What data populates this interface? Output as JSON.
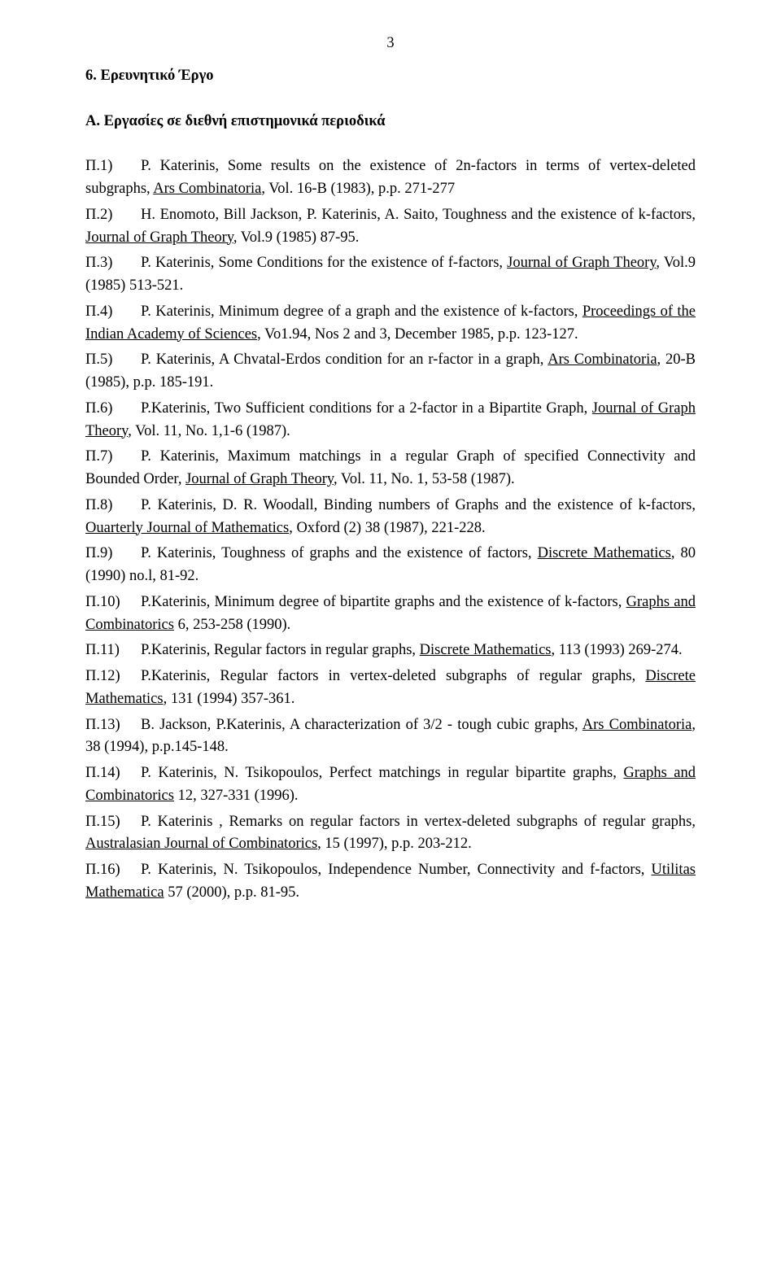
{
  "pageNumber": "3",
  "sectionTitle": "6. Ερευνητικό Έργο",
  "subsectionTitle": "Α. Εργασίες σε διεθνή επιστημονικά  περιοδικά",
  "entries": [
    {
      "label": "Π.1)",
      "pre": "P. Katerinis, Some results on the existence of 2n-factors in terms of vertex-deleted subgraphs, ",
      "u": "Ars Combinatoria",
      "post": ", Vol. 16-B (1983), p.p. 271-277"
    },
    {
      "label": "Π.2)",
      "pre": "H. Enomoto, Bill Jackson, P. Katerinis, A. Saito, Toughness and the existence of k-factors, ",
      "u": "Journal of Graph Theory",
      "post": ", Vol.9 (1985) 87-95."
    },
    {
      "label": "Π.3)",
      "pre": "P. Katerinis, Some Conditions for the existence of f-factors, ",
      "u": "Journal of Graph Theory",
      "post": ", Vol.9 (1985) 513-521."
    },
    {
      "label": "Π.4)",
      "pre": "P. Katerinis, Minimum degree of a graph and the existence of k-factors, ",
      "u": "Proceedings of the Indian Academy of Sciences",
      "post": ", Vo1.94, Nos 2 and 3, December 1985, p.p. 123-127."
    },
    {
      "label": "Π.5)",
      "pre": "P. Katerinis, A Chvatal-Erdos condition for an r-factor in a graph, ",
      "u": "Ars Combinatoria",
      "post": ", 20-B (1985), p.p. 185-191."
    },
    {
      "label": "Π.6)",
      "pre": "P.Katerinis, Two Sufficient conditions for a 2-factor in a Bipartite Graph, ",
      "u": "Journal of Graph Theory",
      "post": ", Vol. 11, No. 1,1-6 (1987)."
    },
    {
      "label": "Π.7)",
      "pre": "P. Katerinis, Maximum matchings in a regular Graph of specified Connectivity and Bounded Order, ",
      "u": "Journal of Graph Theory",
      "post": ", Vol. 11, No. 1, 53-58 (1987)."
    },
    {
      "label": "Π.8)",
      "pre": "P. Katerinis, D. R. Woodall, Binding numbers of Graphs and the existence of k-factors, ",
      "u": "Ouarterly Journal of Mathematics",
      "post": ", Oxford (2) 38 (1987), 221-228."
    },
    {
      "label": "Π.9)",
      "pre": "P. Katerinis, Toughness of graphs and the existence of factors, ",
      "u": "Discrete Mathematics",
      "post": ", 80 (1990) no.l, 81-92."
    },
    {
      "label": "Π.10)",
      "pre": "P.Katerinis, Minimum degree of bipartite graphs and the existence of k-factors, ",
      "u": "Graphs and Combinatorics",
      "post": " 6, 253-258 (1990)."
    },
    {
      "label": "Π.11)",
      "pre": "P.Katerinis, Regular factors in regular graphs, ",
      "u": "Discrete Mathematics",
      "post": ", 113 (1993) 269-274."
    },
    {
      "label": "Π.12)",
      "pre": "P.Katerinis, Regular factors in vertex-deleted subgraphs of regular graphs, ",
      "u": "Discrete Mathematics",
      "post": ", 131 (1994) 357-361."
    },
    {
      "label": "Π.13)",
      "pre": "B. Jackson, P.Katerinis, A characterization of 3/2 - tough cubic graphs, ",
      "u": "Ars Combinatoria",
      "post": ", 38 (1994), p.p.145-148."
    },
    {
      "label": "Π.14)",
      "pre": "P. Katerinis, N. Tsikopoulos, Perfect matchings in regular bipartite  graphs, ",
      "u": "Graphs and Combinatorics",
      "post": " 12, 327-331 (1996)."
    },
    {
      "label": "Π.15)",
      "pre": "P. Katerinis , Remarks on regular factors in vertex-deleted subgraphs of regular graphs, ",
      "u": "Australasian Journal of Combinatorics",
      "post": ", 15 (1997), p.p. 203-212."
    },
    {
      "label": "Π.16)",
      "pre": "P. Katerinis, N. Tsikopoulos, Independence Number, Connectivity and f-factors, ",
      "u": "Utilitas Mathematica",
      "post": " 57 (2000), p.p. 81-95."
    }
  ]
}
